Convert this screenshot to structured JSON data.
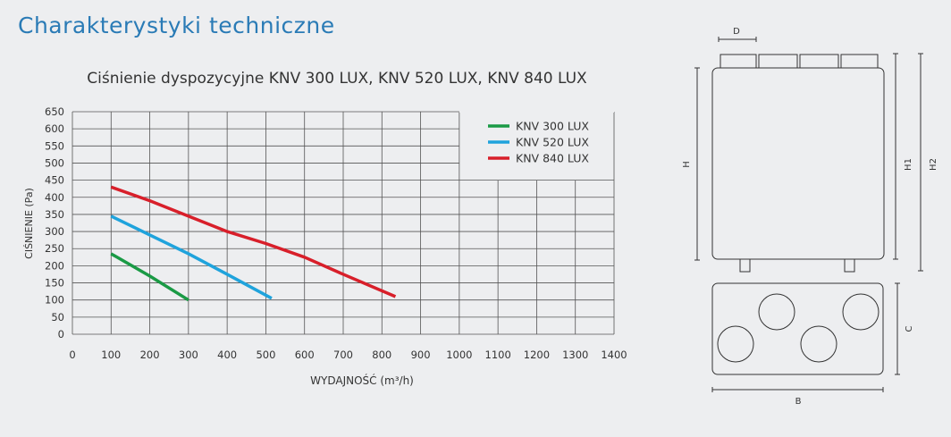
{
  "page": {
    "title": "Charakterystyki techniczne"
  },
  "chart_data": {
    "type": "line",
    "title": "Ciśnienie dyspozycyjne KNV 300 LUX, KNV 520 LUX, KNV 840 LUX",
    "xlabel": "WYDAJNOŚĆ (m³/h)",
    "ylabel": "CIŚNIENIE (Pa)",
    "xlim": [
      0,
      1400
    ],
    "ylim": [
      0,
      650
    ],
    "x_ticks": [
      0,
      100,
      200,
      300,
      400,
      500,
      600,
      700,
      800,
      900,
      1000,
      1100,
      1200,
      1300,
      1400
    ],
    "y_ticks": [
      0,
      50,
      100,
      150,
      200,
      250,
      300,
      350,
      400,
      450,
      500,
      550,
      600,
      650
    ],
    "grid": true,
    "legend_position": "top-right",
    "series": [
      {
        "name": "KNV 300 LUX",
        "color": "#1a9a45",
        "points": [
          [
            100,
            235
          ],
          [
            200,
            170
          ],
          [
            300,
            100
          ]
        ]
      },
      {
        "name": "KNV 520 LUX",
        "color": "#1fa3dc",
        "points": [
          [
            100,
            345
          ],
          [
            200,
            290
          ],
          [
            300,
            235
          ],
          [
            400,
            175
          ],
          [
            515,
            105
          ]
        ]
      },
      {
        "name": "KNV 840 LUX",
        "color": "#d81f2a",
        "points": [
          [
            100,
            430
          ],
          [
            200,
            390
          ],
          [
            300,
            345
          ],
          [
            400,
            300
          ],
          [
            500,
            265
          ],
          [
            600,
            225
          ],
          [
            700,
            175
          ],
          [
            835,
            110
          ]
        ]
      }
    ]
  },
  "diagram": {
    "dimension_labels": {
      "d": "D",
      "h": "H",
      "h1": "H1",
      "h2": "H2",
      "c": "C",
      "b": "B"
    }
  }
}
